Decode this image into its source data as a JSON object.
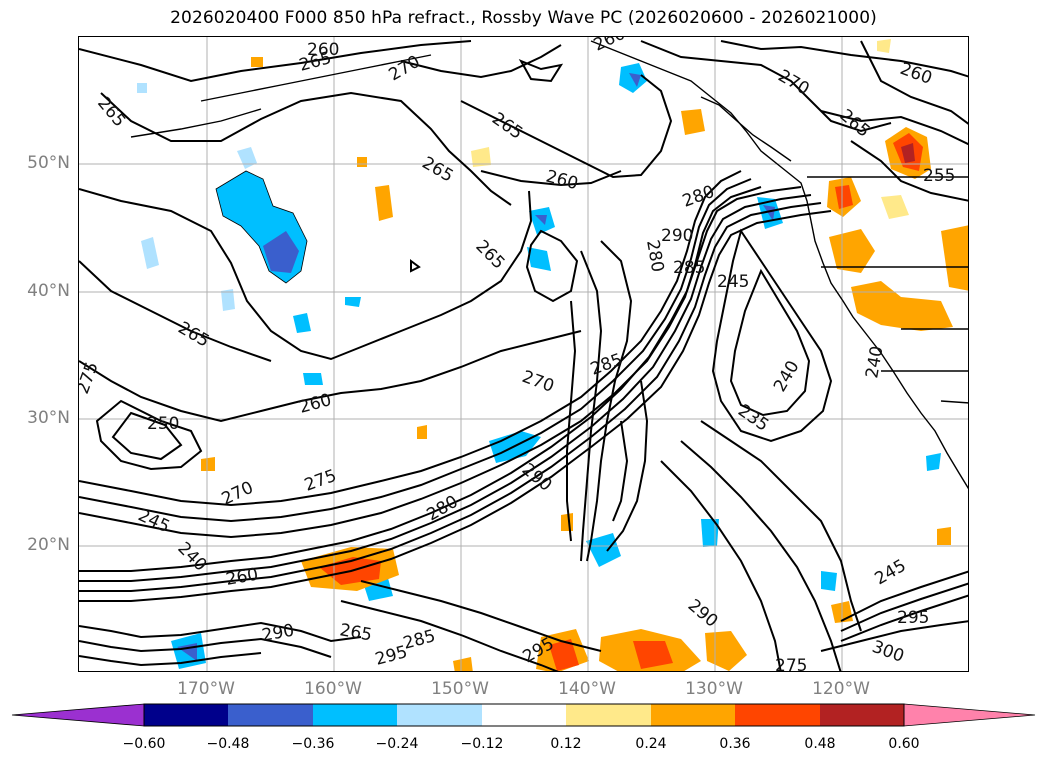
{
  "title": "2026020400 F000 850 hPa refract., Rossby Wave PC (2026020600 - 2026021000)",
  "lat_labels": [
    "50°N",
    "40°N",
    "30°N",
    "20°N"
  ],
  "lon_labels": [
    "170°W",
    "160°W",
    "150°W",
    "140°W",
    "130°W",
    "120°W"
  ],
  "colorbar": {
    "ticks": [
      "−0.60",
      "−0.48",
      "−0.36",
      "−0.24",
      "−0.12",
      "0.12",
      "0.24",
      "0.36",
      "0.48",
      "0.60"
    ],
    "colors": [
      "#9b30d0",
      "#00008b",
      "#3a5fcd",
      "#00bfff",
      "#b0e2ff",
      "#ffffff",
      "#ffe98a",
      "#ffa500",
      "#ff4500",
      "#b22222",
      "#ff82ab"
    ]
  },
  "contour_labels": {
    "l01": "265",
    "l02": "260",
    "l03": "265",
    "l04": "270",
    "l05": "260",
    "l06": "265",
    "l07": "260",
    "l08": "265",
    "l09": "260",
    "l10": "255",
    "l11": "265",
    "l12": "265",
    "l13": "270",
    "l14": "280",
    "l15": "285",
    "l16": "290",
    "l17": "245",
    "l18": "240",
    "l19": "240",
    "l20": "235",
    "l21": "265",
    "l22": "275",
    "l23": "260",
    "l24": "250",
    "l25": "275",
    "l26": "270",
    "l27": "245",
    "l28": "240",
    "l29": "260",
    "l30": "265",
    "l31": "290",
    "l32": "285",
    "l33": "295",
    "l34": "295",
    "l35": "295",
    "l36": "300",
    "l37": "245",
    "l38": "275",
    "l39": "290",
    "l40": "290",
    "l41": "285",
    "l42": "270",
    "l43": "280",
    "l44": "280"
  }
}
